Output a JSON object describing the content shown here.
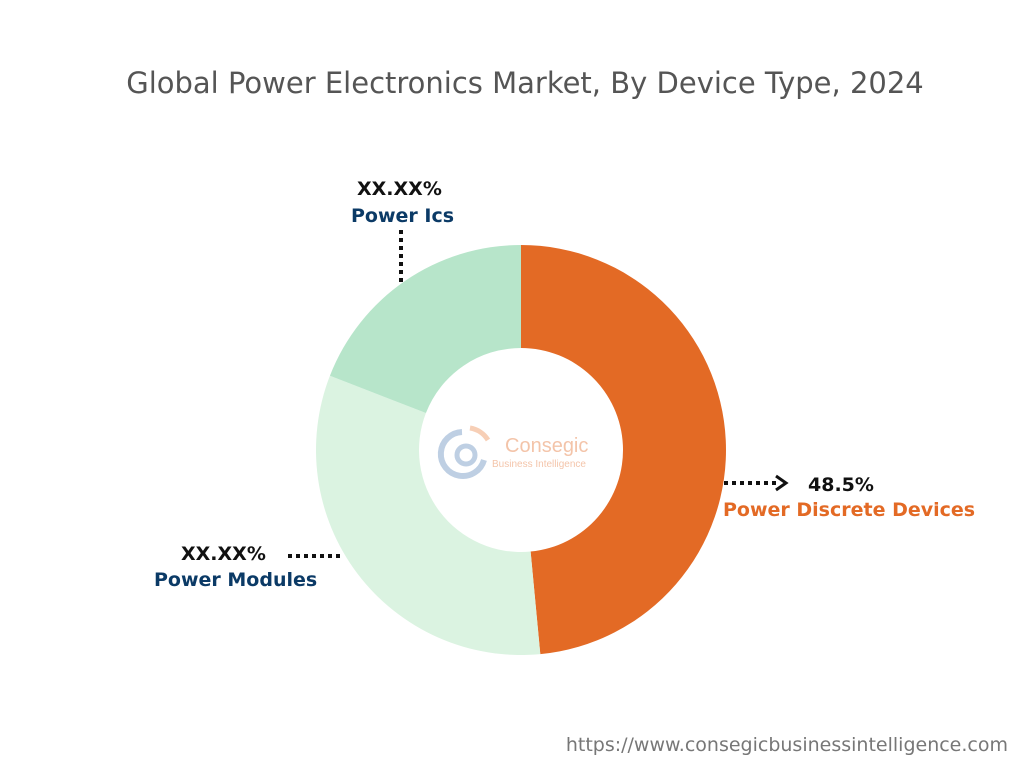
{
  "title": "Global Power Electronics Market, By Device Type, 2024",
  "chart_data": {
    "type": "pie",
    "donut": true,
    "title": "Global Power Electronics Market, By Device Type, 2024",
    "categories": [
      "Power Discrete Devices",
      "Power Modules",
      "Power Ics"
    ],
    "values": [
      48.5,
      32.4,
      19.1
    ],
    "data_labels": [
      "48.5%",
      "XX.XX%",
      "XX.XX%"
    ],
    "colors": [
      "#e36a25",
      "#dbf3e1",
      "#b7e5ca"
    ]
  },
  "logo": {
    "text": "Consegic",
    "subtext": "Business Intelligence"
  },
  "source_url": "https://www.consegicbusinessintelligence.com"
}
